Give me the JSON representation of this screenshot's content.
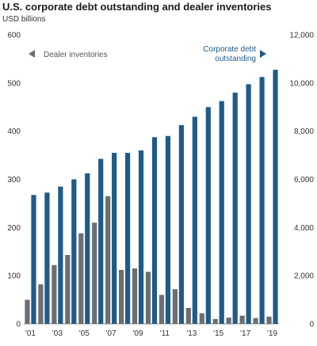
{
  "chart_data": {
    "type": "bar",
    "title": "U.S. corporate debt outstanding and dealer inventories",
    "subtitle": "USD billions",
    "categories": [
      "'01",
      "'02",
      "'03",
      "'04",
      "'05",
      "'06",
      "'07",
      "'08",
      "'09",
      "'10",
      "'11",
      "'12",
      "'13",
      "'14",
      "'15",
      "'16",
      "'17",
      "'18",
      "'19"
    ],
    "x_tick_labels": [
      "'01",
      "'03",
      "'05",
      "'07",
      "'09",
      "'11",
      "'13",
      "'15",
      "'17",
      "'19"
    ],
    "series": [
      {
        "name": "Dealer inventories",
        "axis": "left",
        "color": "#6d6e71",
        "values": [
          50,
          82,
          122,
          143,
          188,
          210,
          265,
          112,
          115,
          108,
          60,
          72,
          33,
          22,
          10,
          13,
          17,
          12,
          15
        ]
      },
      {
        "name": "Corporate debt outstanding",
        "axis": "right",
        "color": "#1f5b89",
        "values": [
          5350,
          5450,
          5700,
          6000,
          6250,
          6850,
          7100,
          7100,
          7200,
          7750,
          7800,
          8250,
          8600,
          9000,
          9250,
          9600,
          9950,
          10250,
          10550
        ]
      }
    ],
    "y_left": {
      "ylim": [
        0,
        600
      ],
      "ticks": [
        "0",
        "100",
        "200",
        "300",
        "400",
        "500",
        "600"
      ]
    },
    "y_right": {
      "ylim": [
        0,
        12000
      ],
      "ticks": [
        "0",
        "2,000",
        "4,000",
        "6,000",
        "8,000",
        "10,000",
        "12,000"
      ]
    },
    "legend": [
      {
        "label": "Dealer inventories",
        "arrow": "left",
        "color": "#6d6e71",
        "placement": "top-left"
      },
      {
        "label_lines": [
          "Corporate debt",
          "outstanding"
        ],
        "arrow": "right",
        "color": "#1f5b89",
        "placement": "top-right"
      }
    ],
    "grid": false
  }
}
